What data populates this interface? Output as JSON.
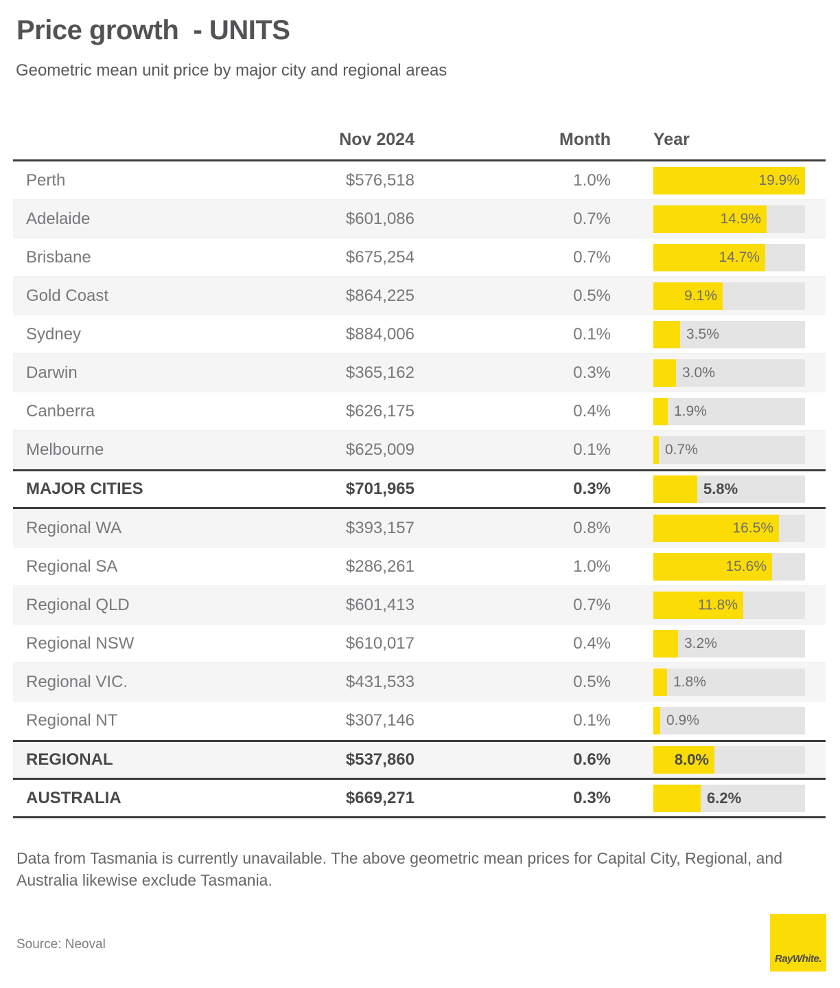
{
  "header": {
    "title": "Price growth  - UNITS",
    "subtitle": "Geometric mean unit price by major city and regional areas"
  },
  "chart_data": {
    "type": "table",
    "title": "Price growth - UNITS",
    "subtitle": "Geometric mean unit price by major city and regional areas",
    "columns": {
      "price": "Nov 2024",
      "month": "Month",
      "year": "Year"
    },
    "bar_axis": {
      "column": "Year",
      "min": 0,
      "max": 19.9,
      "unit": "%"
    },
    "rows": [
      {
        "label": "Perth",
        "price": "$576,518",
        "month": "1.0%",
        "year_pct": 19.9,
        "year_label": "19.9%",
        "bold": false,
        "border_top": false,
        "border_bottom": false
      },
      {
        "label": "Adelaide",
        "price": "$601,086",
        "month": "0.7%",
        "year_pct": 14.9,
        "year_label": "14.9%",
        "bold": false,
        "border_top": false,
        "border_bottom": false
      },
      {
        "label": "Brisbane",
        "price": "$675,254",
        "month": "0.7%",
        "year_pct": 14.7,
        "year_label": "14.7%",
        "bold": false,
        "border_top": false,
        "border_bottom": false
      },
      {
        "label": "Gold Coast",
        "price": "$864,225",
        "month": "0.5%",
        "year_pct": 9.1,
        "year_label": "9.1%",
        "bold": false,
        "border_top": false,
        "border_bottom": false
      },
      {
        "label": "Sydney",
        "price": "$884,006",
        "month": "0.1%",
        "year_pct": 3.5,
        "year_label": "3.5%",
        "bold": false,
        "border_top": false,
        "border_bottom": false
      },
      {
        "label": "Darwin",
        "price": "$365,162",
        "month": "0.3%",
        "year_pct": 3.0,
        "year_label": "3.0%",
        "bold": false,
        "border_top": false,
        "border_bottom": false
      },
      {
        "label": "Canberra",
        "price": "$626,175",
        "month": "0.4%",
        "year_pct": 1.9,
        "year_label": "1.9%",
        "bold": false,
        "border_top": false,
        "border_bottom": false
      },
      {
        "label": "Melbourne",
        "price": "$625,009",
        "month": "0.1%",
        "year_pct": 0.7,
        "year_label": "0.7%",
        "bold": false,
        "border_top": false,
        "border_bottom": false
      },
      {
        "label": "MAJOR CITIES",
        "price": "$701,965",
        "month": "0.3%",
        "year_pct": 5.8,
        "year_label": "5.8%",
        "bold": true,
        "border_top": true,
        "border_bottom": true
      },
      {
        "label": "Regional WA",
        "price": "$393,157",
        "month": "0.8%",
        "year_pct": 16.5,
        "year_label": "16.5%",
        "bold": false,
        "border_top": false,
        "border_bottom": false
      },
      {
        "label": "Regional SA",
        "price": "$286,261",
        "month": "1.0%",
        "year_pct": 15.6,
        "year_label": "15.6%",
        "bold": false,
        "border_top": false,
        "border_bottom": false
      },
      {
        "label": "Regional QLD",
        "price": "$601,413",
        "month": "0.7%",
        "year_pct": 11.8,
        "year_label": "11.8%",
        "bold": false,
        "border_top": false,
        "border_bottom": false
      },
      {
        "label": "Regional NSW",
        "price": "$610,017",
        "month": "0.4%",
        "year_pct": 3.2,
        "year_label": "3.2%",
        "bold": false,
        "border_top": false,
        "border_bottom": false
      },
      {
        "label": "Regional VIC.",
        "price": "$431,533",
        "month": "0.5%",
        "year_pct": 1.8,
        "year_label": "1.8%",
        "bold": false,
        "border_top": false,
        "border_bottom": false
      },
      {
        "label": "Regional NT",
        "price": "$307,146",
        "month": "0.1%",
        "year_pct": 0.9,
        "year_label": "0.9%",
        "bold": false,
        "border_top": false,
        "border_bottom": false
      },
      {
        "label": "REGIONAL",
        "price": "$537,860",
        "month": "0.6%",
        "year_pct": 8.0,
        "year_label": "8.0%",
        "bold": true,
        "border_top": true,
        "border_bottom": true
      },
      {
        "label": "AUSTRALIA",
        "price": "$669,271",
        "month": "0.3%",
        "year_pct": 6.2,
        "year_label": "6.2%",
        "bold": true,
        "border_top": false,
        "border_bottom": true
      }
    ]
  },
  "footnote": "Data from Tasmania is currently unavailable. The above geometric mean prices for Capital City, Regional, and Australia likewise exclude Tasmania.",
  "source": "Source: Neoval",
  "logo": {
    "text": "RayWhite."
  },
  "colors": {
    "accent_yellow": "#fbdc05",
    "bar_track_gray": "#e4e4e4",
    "row_stripe_gray": "#f5f5f6",
    "border_dark": "#3c3d3f",
    "text_gray": "#77787b",
    "text_dark": "#48494b"
  }
}
